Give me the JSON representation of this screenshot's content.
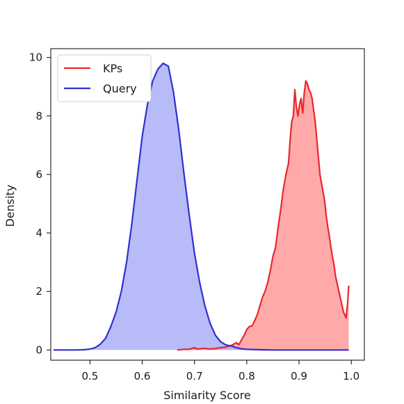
{
  "chart_data": {
    "type": "area",
    "title": "",
    "xlabel": "Similarity Score",
    "ylabel": "Density",
    "xlim": [
      0.425,
      1.025
    ],
    "ylim": [
      -0.35,
      10.3
    ],
    "x_ticks": [
      "0.5",
      "0.6",
      "0.7",
      "0.8",
      "0.9",
      "1.0"
    ],
    "y_ticks": [
      "0",
      "2",
      "4",
      "6",
      "8",
      "10"
    ],
    "grid": false,
    "legend_position": "top-left",
    "series": [
      {
        "name": "KPs",
        "line_color": "#e8282c",
        "fill_color": "#ff9a9a",
        "x": [
          0.667,
          0.68,
          0.69,
          0.7,
          0.705,
          0.71,
          0.72,
          0.73,
          0.74,
          0.75,
          0.76,
          0.77,
          0.78,
          0.785,
          0.79,
          0.795,
          0.8,
          0.805,
          0.81,
          0.815,
          0.82,
          0.825,
          0.83,
          0.835,
          0.84,
          0.845,
          0.85,
          0.855,
          0.86,
          0.865,
          0.87,
          0.875,
          0.88,
          0.883,
          0.886,
          0.889,
          0.892,
          0.895,
          0.898,
          0.901,
          0.904,
          0.907,
          0.91,
          0.913,
          0.916,
          0.919,
          0.922,
          0.925,
          0.928,
          0.931,
          0.934,
          0.937,
          0.94,
          0.943,
          0.946,
          0.949,
          0.952,
          0.955,
          0.958,
          0.961,
          0.964,
          0.967,
          0.97,
          0.975,
          0.98,
          0.985,
          0.99,
          0.993,
          0.995
        ],
        "values": [
          0.0,
          0.02,
          0.02,
          0.08,
          0.03,
          0.04,
          0.06,
          0.03,
          0.05,
          0.08,
          0.1,
          0.15,
          0.25,
          0.18,
          0.35,
          0.5,
          0.7,
          0.8,
          0.82,
          1.0,
          1.2,
          1.5,
          1.8,
          2.0,
          2.3,
          2.7,
          3.2,
          3.5,
          4.2,
          4.8,
          5.5,
          6.0,
          6.4,
          7.2,
          7.8,
          8.0,
          8.9,
          8.3,
          8.0,
          8.4,
          8.6,
          8.1,
          8.8,
          9.2,
          9.1,
          8.9,
          8.8,
          8.6,
          8.2,
          7.8,
          7.2,
          6.6,
          6.0,
          5.7,
          5.4,
          5.1,
          4.6,
          4.2,
          3.9,
          3.5,
          3.2,
          2.9,
          2.5,
          2.1,
          1.7,
          1.3,
          1.1,
          1.6,
          2.2
        ]
      },
      {
        "name": "Query",
        "line_color": "#2f2fd0",
        "fill_color": "#aab0f8",
        "x": [
          0.43,
          0.45,
          0.47,
          0.49,
          0.5,
          0.51,
          0.52,
          0.53,
          0.54,
          0.55,
          0.56,
          0.57,
          0.58,
          0.59,
          0.6,
          0.61,
          0.62,
          0.63,
          0.64,
          0.645,
          0.65,
          0.66,
          0.67,
          0.68,
          0.69,
          0.7,
          0.71,
          0.72,
          0.73,
          0.74,
          0.75,
          0.76,
          0.77,
          0.78,
          0.79,
          0.8,
          0.82,
          0.85,
          0.9,
          0.95,
          0.995
        ],
        "values": [
          0.0,
          0.0,
          0.0,
          0.01,
          0.03,
          0.08,
          0.2,
          0.4,
          0.8,
          1.3,
          2.0,
          3.0,
          4.3,
          5.8,
          7.3,
          8.4,
          9.2,
          9.6,
          9.8,
          9.75,
          9.7,
          8.8,
          7.5,
          6.0,
          4.6,
          3.3,
          2.3,
          1.5,
          0.9,
          0.5,
          0.28,
          0.17,
          0.14,
          0.08,
          0.04,
          0.02,
          0.01,
          0.0,
          0.0,
          0.0,
          0.0
        ]
      }
    ]
  }
}
